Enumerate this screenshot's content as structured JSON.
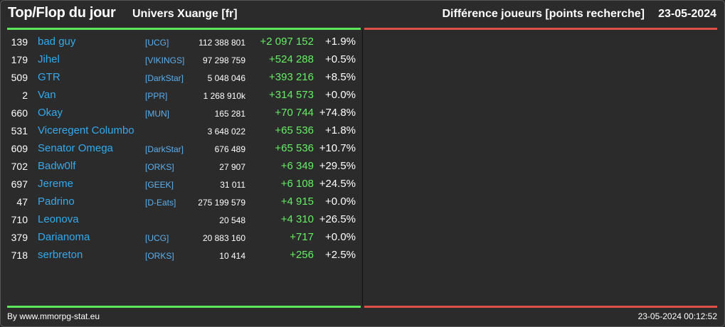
{
  "header": {
    "title": "Top/Flop du jour",
    "subtitle": "Univers Xuange [fr]",
    "diff_label": "Différence joueurs [points recherche]",
    "date": "23-05-2024"
  },
  "colors": {
    "top_bar": "#5ce65c",
    "flop_bar": "#e0504a",
    "player_link": "#33aaee",
    "positive_diff": "#66ee66"
  },
  "top_rows": [
    {
      "rank": "139",
      "name": "bad guy",
      "alliance": "[UCG]",
      "points": "112 388 801",
      "diff": "+2 097 152",
      "pct": "+1.9%"
    },
    {
      "rank": "179",
      "name": "Jihel",
      "alliance": "[VIKINGS]",
      "points": "97 298 759",
      "diff": "+524 288",
      "pct": "+0.5%"
    },
    {
      "rank": "509",
      "name": "GTR",
      "alliance": "[DarkStar]",
      "points": "5 048 046",
      "diff": "+393 216",
      "pct": "+8.5%"
    },
    {
      "rank": "2",
      "name": "Van",
      "alliance": "[PPR]",
      "points": "1 268 910k",
      "diff": "+314 573",
      "pct": "+0.0%"
    },
    {
      "rank": "660",
      "name": "Okay",
      "alliance": "[MUN]",
      "points": "165 281",
      "diff": "+70 744",
      "pct": "+74.8%"
    },
    {
      "rank": "531",
      "name": "Viceregent Columbo",
      "alliance": "",
      "points": "3 648 022",
      "diff": "+65 536",
      "pct": "+1.8%"
    },
    {
      "rank": "609",
      "name": "Senator Omega",
      "alliance": "[DarkStar]",
      "points": "676 489",
      "diff": "+65 536",
      "pct": "+10.7%"
    },
    {
      "rank": "702",
      "name": "Badw0lf",
      "alliance": "[ORKS]",
      "points": "27 907",
      "diff": "+6 349",
      "pct": "+29.5%"
    },
    {
      "rank": "697",
      "name": "Jereme",
      "alliance": "[GEEK]",
      "points": "31 011",
      "diff": "+6 108",
      "pct": "+24.5%"
    },
    {
      "rank": "47",
      "name": "Padrino",
      "alliance": "[D-Eats]",
      "points": "275 199 579",
      "diff": "+4 915",
      "pct": "+0.0%"
    },
    {
      "rank": "710",
      "name": "Leonova",
      "alliance": "",
      "points": "20 548",
      "diff": "+4 310",
      "pct": "+26.5%"
    },
    {
      "rank": "379",
      "name": "Darianoma",
      "alliance": "[UCG]",
      "points": "20 883 160",
      "diff": "+717",
      "pct": "+0.0%"
    },
    {
      "rank": "718",
      "name": "serbreton",
      "alliance": "[ORKS]",
      "points": "10 414",
      "diff": "+256",
      "pct": "+2.5%"
    }
  ],
  "footer": {
    "credit": "By www.mmorpg-stat.eu",
    "timestamp": "23-05-2024 00:12:52"
  }
}
